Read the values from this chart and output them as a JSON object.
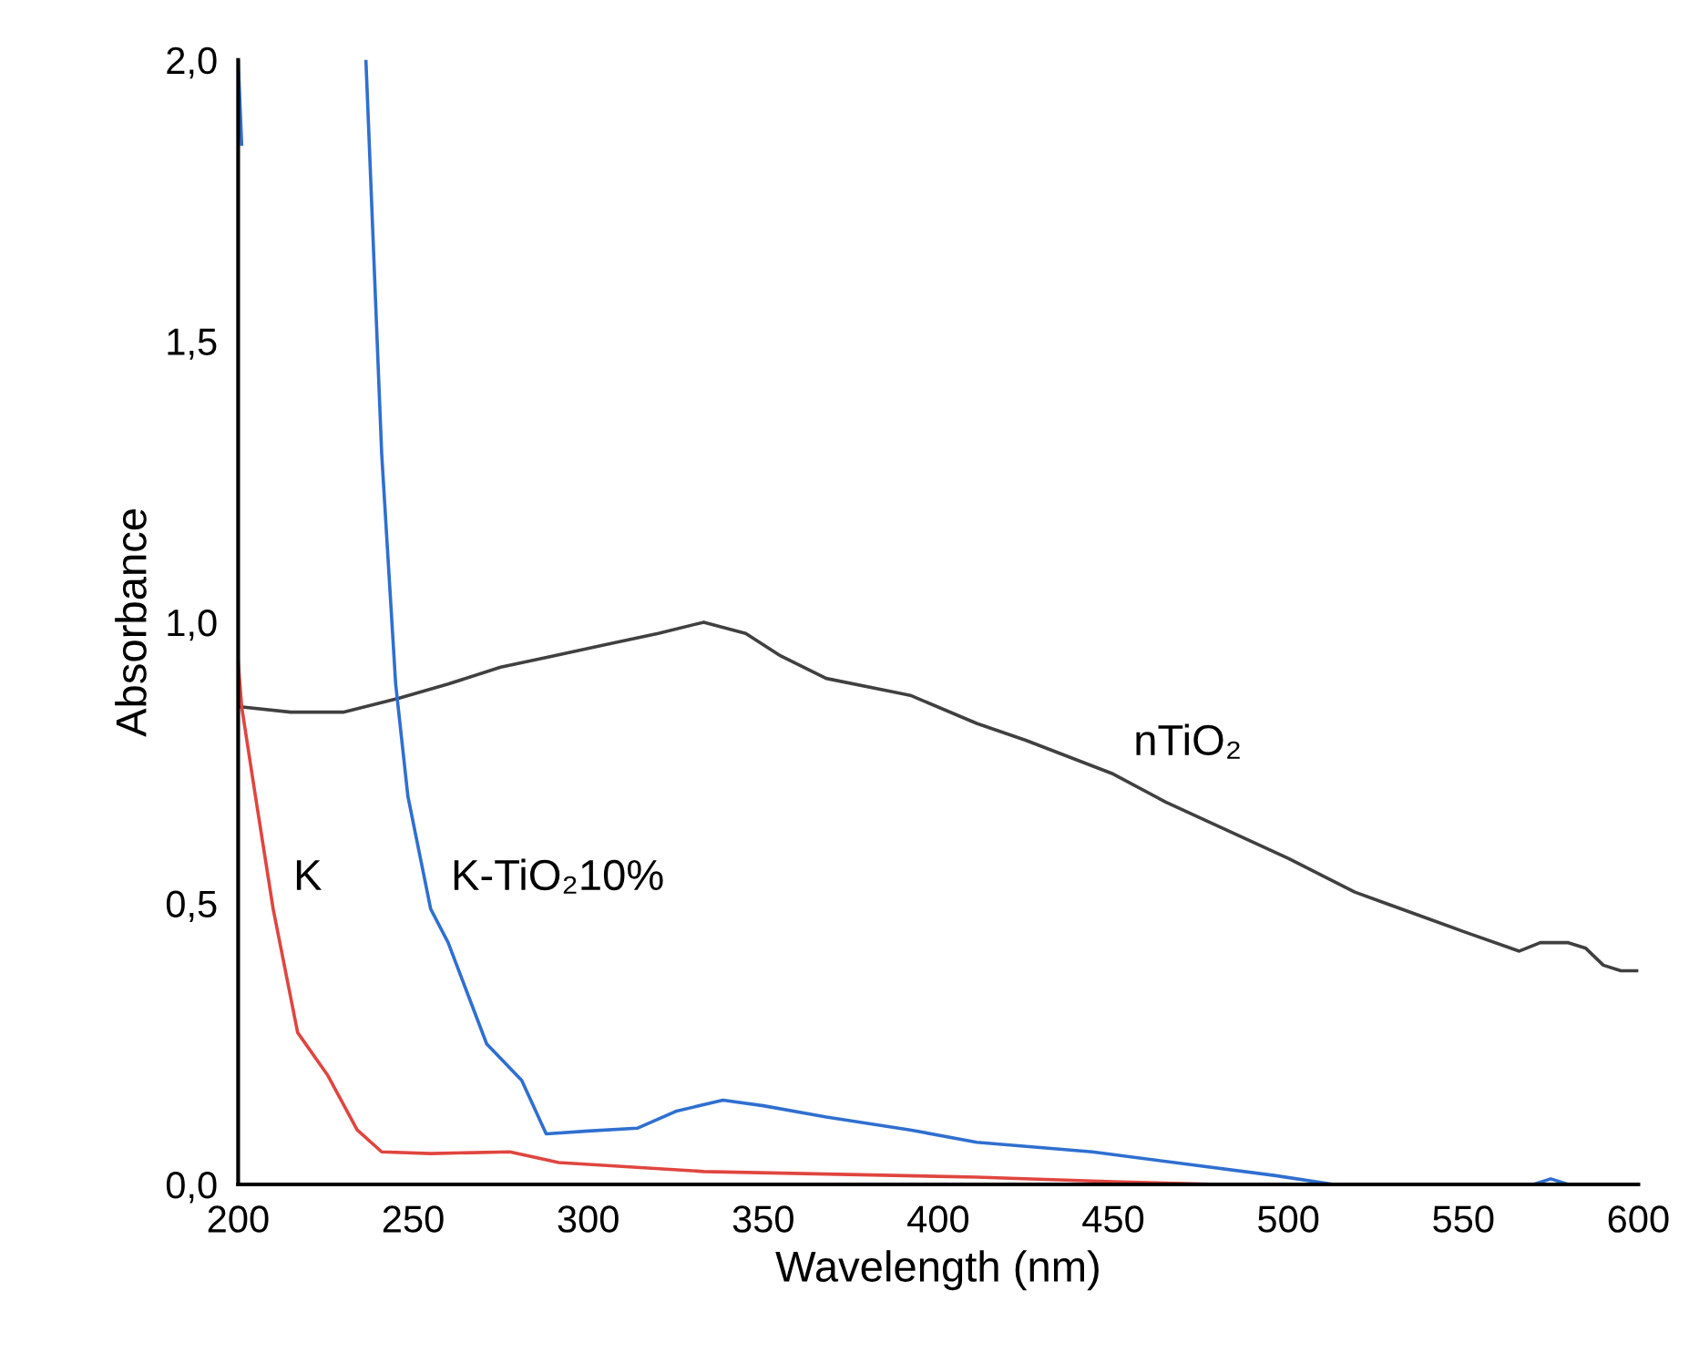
{
  "chart_data": {
    "type": "line",
    "xlabel": "Wavelength (nm)",
    "ylabel": "Absorbance",
    "xlim": [
      200,
      600
    ],
    "xticks": [
      200,
      250,
      300,
      350,
      400,
      450,
      500,
      550,
      600
    ],
    "ylim": [
      0,
      2.0
    ],
    "yticks": [
      {
        "value": 0,
        "label": "0,0"
      },
      {
        "value": 0.5,
        "label": "0,5"
      },
      {
        "value": 1.0,
        "label": "1,0"
      },
      {
        "value": 1.5,
        "label": "1,5"
      },
      {
        "value": 2.0,
        "label": "2,0"
      }
    ],
    "grid": false,
    "legend": false,
    "marker": "none",
    "line_style": "solid",
    "series": [
      {
        "color": "#404040",
        "x": [
          200,
          215,
          230,
          246,
          260,
          275,
          290,
          305,
          320,
          333,
          345,
          355,
          368,
          392,
          411,
          425,
          450,
          465,
          500,
          519,
          550,
          566,
          572,
          580,
          585,
          590,
          595,
          600
        ],
        "values": [
          0.85,
          0.84,
          0.84,
          0.865,
          0.89,
          0.92,
          0.94,
          0.96,
          0.98,
          1.0,
          0.98,
          0.94,
          0.9,
          0.87,
          0.82,
          0.79,
          0.73,
          0.68,
          0.58,
          0.52,
          0.45,
          0.415,
          0.43,
          0.43,
          0.42,
          0.39,
          0.38,
          0.38
        ]
      },
      {
        "color": "#2f6fd0",
        "x": [
          200,
          201,
          218,
          236.5,
          241,
          245,
          248.5,
          255,
          260,
          271,
          281,
          288,
          300,
          314,
          325,
          338.5,
          350,
          368,
          392,
          411,
          444,
          496,
          513,
          570,
          575,
          580,
          585,
          600
        ],
        "values": [
          2.0,
          1.85,
          null,
          2.0,
          1.3,
          0.89,
          0.69,
          0.49,
          0.43,
          0.25,
          0.185,
          0.09,
          0.095,
          0.1,
          0.13,
          0.15,
          0.14,
          0.12,
          0.097,
          0.075,
          0.058,
          0.016,
          0.0,
          0.0,
          0.01,
          0.0,
          0.0,
          0.0
        ]
      },
      {
        "color": "#e0453f",
        "x": [
          200,
          201,
          204.7,
          210,
          217,
          225.5,
          234,
          241,
          255,
          277.6,
          291.6,
          333,
          411,
          450,
          480
        ],
        "values": [
          0.93,
          0.85,
          0.7,
          0.49,
          0.27,
          0.195,
          0.097,
          0.058,
          0.055,
          0.058,
          0.039,
          0.023,
          0.013,
          0.005,
          0.0
        ]
      }
    ],
    "annotations": [
      {
        "text": "K",
        "x": 210,
        "y": 0.49
      },
      {
        "text": "K-TiO₂10%",
        "x": 255,
        "y": 0.49
      },
      {
        "text": "nTiO₂",
        "x": 450,
        "y": 0.73
      }
    ]
  }
}
